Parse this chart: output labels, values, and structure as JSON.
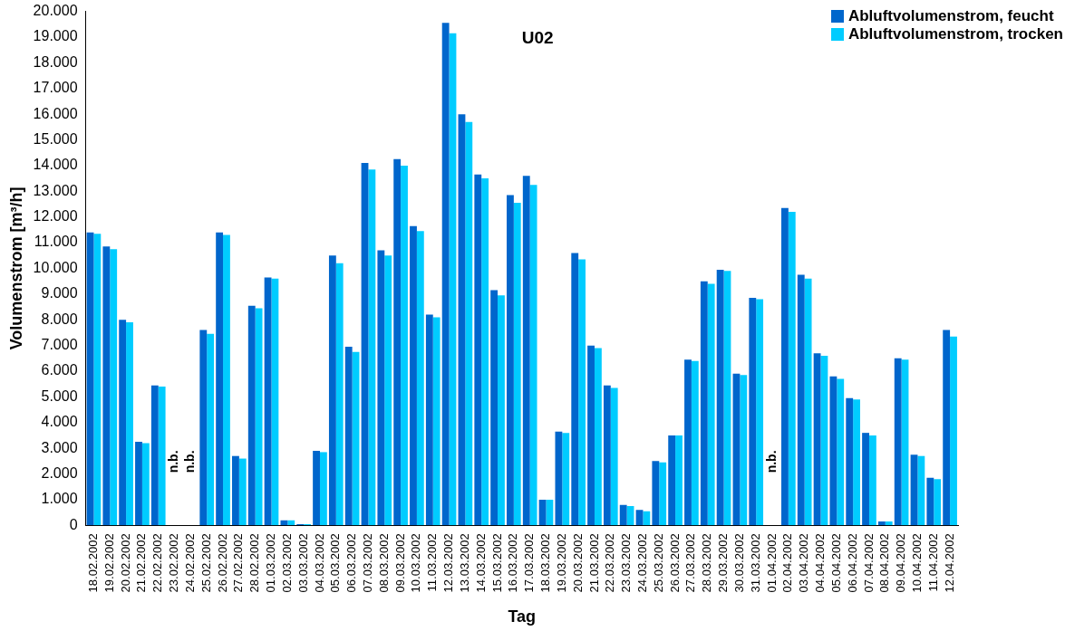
{
  "chart_data": {
    "type": "bar",
    "title": "U02",
    "xlabel": "Tag",
    "ylabel": "Volumenstrom [m³/h]",
    "categories": [
      "18.02.2002",
      "19.02.2002",
      "20.02.2002",
      "21.02.2002",
      "22.02.2002",
      "23.02.2002",
      "24.02.2002",
      "25.02.2002",
      "26.02.2002",
      "27.02.2002",
      "28.02.2002",
      "01.03.2002",
      "02.03.2002",
      "03.03.2002",
      "04.03.2002",
      "05.03.2002",
      "06.03.2002",
      "07.03.2002",
      "08.03.2002",
      "09.03.2002",
      "10.03.2002",
      "11.03.2002",
      "12.03.2002",
      "13.03.2002",
      "14.03.2002",
      "15.03.2002",
      "16.03.2002",
      "17.03.2002",
      "18.03.2002",
      "19.03.2002",
      "20.03.2002",
      "21.03.2002",
      "22.03.2002",
      "23.03.2002",
      "24.03.2002",
      "25.03.2002",
      "26.03.2002",
      "27.03.2002",
      "28.03.2002",
      "29.03.2002",
      "30.03.2002",
      "31.03.2002",
      "01.04.2002",
      "02.04.2002",
      "03.04.2002",
      "04.04.2002",
      "05.04.2002",
      "06.04.2002",
      "07.04.2002",
      "08.04.2002",
      "09.04.2002",
      "10.04.2002",
      "11.04.2002",
      "12.04.2002"
    ],
    "series": [
      {
        "name": "Abluftvolumenstrom, feucht",
        "color": "#0066cc",
        "values": [
          11400,
          10850,
          8000,
          3250,
          5450,
          null,
          null,
          7600,
          11400,
          2700,
          8550,
          9650,
          200,
          50,
          2900,
          10500,
          6950,
          14100,
          10700,
          14250,
          11650,
          8200,
          19550,
          16000,
          13650,
          9150,
          12850,
          13600,
          1000,
          3650,
          10600,
          7000,
          5450,
          800,
          600,
          2500,
          3500,
          6450,
          9500,
          9950,
          5900,
          8850,
          null,
          12350,
          9750,
          6700,
          5800,
          4950,
          3600,
          150,
          6500,
          2750,
          1850,
          7600
        ]
      },
      {
        "name": "Abluftvolumenstrom, trocken",
        "color": "#00ccff",
        "values": [
          11350,
          10750,
          7900,
          3200,
          5400,
          null,
          null,
          7450,
          11300,
          2600,
          8450,
          9600,
          200,
          50,
          2850,
          10200,
          6750,
          13850,
          10500,
          14000,
          11450,
          8100,
          19150,
          15700,
          13500,
          8950,
          12550,
          13250,
          1000,
          3600,
          10350,
          6900,
          5350,
          750,
          550,
          2450,
          3500,
          6400,
          9400,
          9900,
          5850,
          8800,
          null,
          12200,
          9600,
          6600,
          5700,
          4900,
          3500,
          150,
          6450,
          2700,
          1800,
          7350
        ]
      }
    ],
    "ylim": [
      0,
      20000
    ],
    "yticks": [
      {
        "value": 0,
        "label": "0"
      },
      {
        "value": 1000,
        "label": "1.000"
      },
      {
        "value": 2000,
        "label": "2.000"
      },
      {
        "value": 3000,
        "label": "3.000"
      },
      {
        "value": 4000,
        "label": "4.000"
      },
      {
        "value": 5000,
        "label": "5.000"
      },
      {
        "value": 6000,
        "label": "6.000"
      },
      {
        "value": 7000,
        "label": "7.000"
      },
      {
        "value": 8000,
        "label": "8.000"
      },
      {
        "value": 9000,
        "label": "9.000"
      },
      {
        "value": 10000,
        "label": "10.000"
      },
      {
        "value": 11000,
        "label": "11.000"
      },
      {
        "value": 12000,
        "label": "12.000"
      },
      {
        "value": 13000,
        "label": "13.000"
      },
      {
        "value": 14000,
        "label": "14.000"
      },
      {
        "value": 15000,
        "label": "15.000"
      },
      {
        "value": 16000,
        "label": "16.000"
      },
      {
        "value": 17000,
        "label": "17.000"
      },
      {
        "value": 18000,
        "label": "18.000"
      },
      {
        "value": 19000,
        "label": "19.000"
      },
      {
        "value": 20000,
        "label": "20.000"
      }
    ],
    "annotations": [
      "n.b.",
      "n.b.",
      "n.b."
    ],
    "grid": false,
    "legend": "top right"
  }
}
